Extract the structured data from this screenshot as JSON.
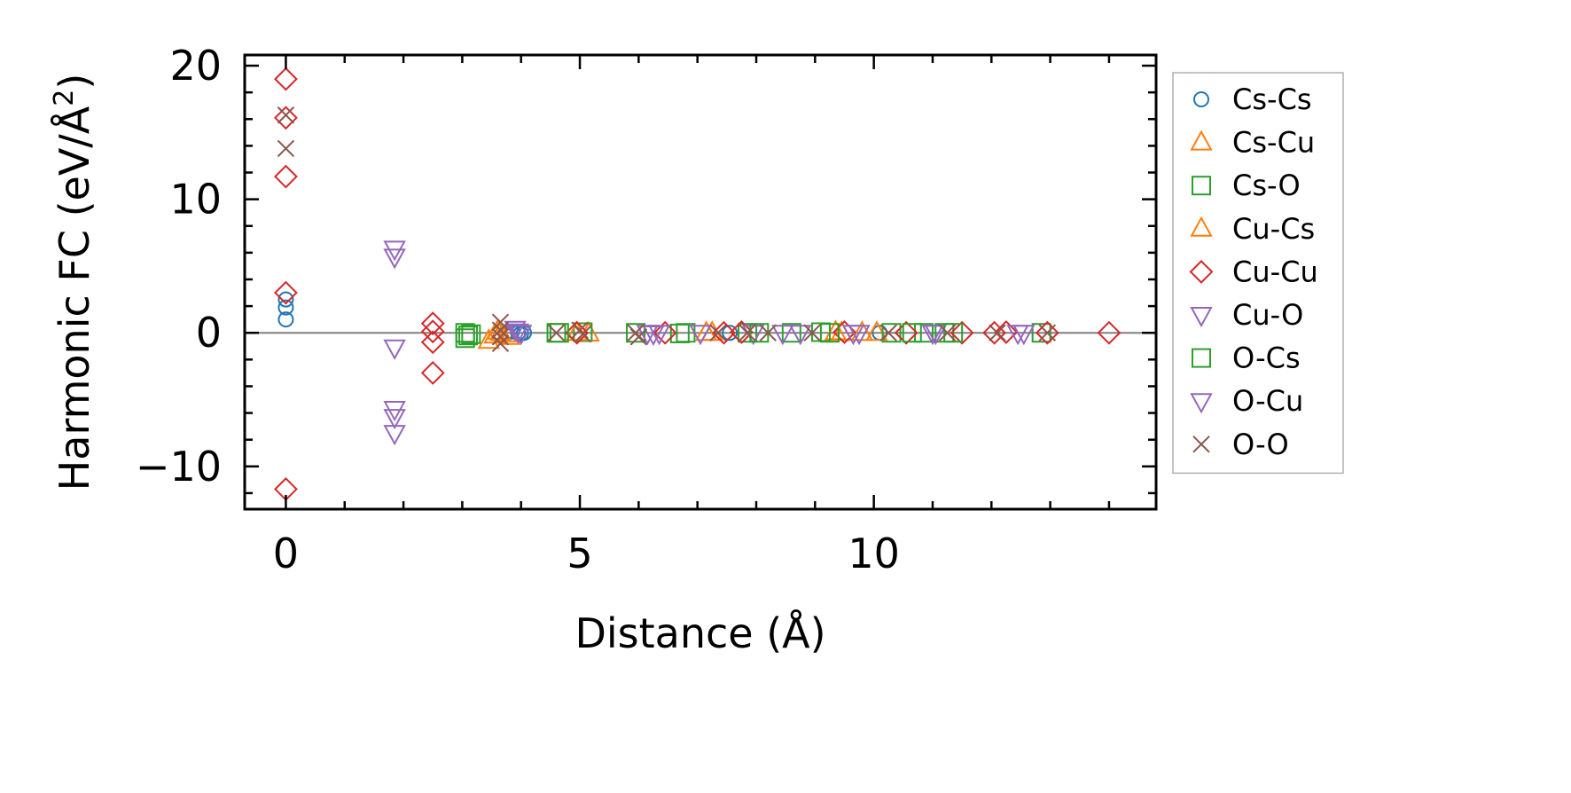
{
  "chart_data": {
    "type": "scatter",
    "xlabel": "Distance (Å)",
    "ylabel": "Harmonic FC (eV/Å",
    "ylabel_sup": "2",
    "ylabel_close": ")",
    "xlim": [
      -0.7,
      14.8
    ],
    "ylim": [
      -13.2,
      20.8
    ],
    "xticks": [
      0,
      5,
      10
    ],
    "yticks": [
      -10,
      0,
      10,
      20
    ],
    "x_tick_labels": [
      "0",
      "5",
      "10"
    ],
    "y_tick_labels": [
      "−10",
      "0",
      "10",
      "20"
    ],
    "legend_position": "outside-right",
    "zero_line": true,
    "series": [
      {
        "name": "Cs-Cs",
        "marker": "circle",
        "color": "#1f77b4",
        "points": [
          [
            0,
            1.0
          ],
          [
            0,
            1.9
          ],
          [
            0,
            2.5
          ],
          [
            3.75,
            0.05
          ],
          [
            3.85,
            0.1
          ],
          [
            3.95,
            0.0
          ],
          [
            4.0,
            -0.05
          ],
          [
            4.05,
            0.0
          ],
          [
            7.55,
            0.0
          ],
          [
            10.1,
            0.0
          ]
        ]
      },
      {
        "name": "Cs-Cu",
        "marker": "triangle-up",
        "color": "#ff7f0e",
        "points": [
          [
            3.45,
            -0.6
          ],
          [
            3.55,
            -0.2
          ],
          [
            3.65,
            0.0
          ],
          [
            3.75,
            -0.1
          ],
          [
            5.15,
            -0.05
          ],
          [
            7.15,
            0.0
          ],
          [
            9.35,
            0.05
          ],
          [
            9.8,
            0.0
          ],
          [
            10.05,
            0.0
          ]
        ]
      },
      {
        "name": "Cs-O",
        "marker": "square",
        "color": "#2ca02c",
        "points": [
          [
            3.05,
            -0.4
          ],
          [
            3.05,
            0.0
          ],
          [
            3.1,
            -0.2
          ],
          [
            4.6,
            0.0
          ],
          [
            5.05,
            0.05
          ],
          [
            5.95,
            0.0
          ],
          [
            6.7,
            -0.05
          ],
          [
            7.85,
            0.0
          ],
          [
            8.6,
            0.0
          ],
          [
            9.1,
            0.05
          ],
          [
            10.3,
            0.0
          ],
          [
            10.85,
            0.0
          ],
          [
            11.2,
            0.0
          ],
          [
            12.85,
            0.0
          ]
        ]
      },
      {
        "name": "Cu-Cs",
        "marker": "triangle-up",
        "color": "#ff7f0e",
        "points": [
          [
            3.6,
            0.1
          ],
          [
            3.8,
            -0.3
          ],
          [
            4.95,
            0.0
          ],
          [
            7.25,
            0.0
          ],
          [
            9.45,
            0.0
          ]
        ]
      },
      {
        "name": "Cu-Cu",
        "marker": "diamond",
        "color": "#d62728",
        "points": [
          [
            0,
            19.0
          ],
          [
            0,
            16.1
          ],
          [
            0,
            11.7
          ],
          [
            0,
            3.0
          ],
          [
            0,
            -11.7
          ],
          [
            2.5,
            0.7
          ],
          [
            2.5,
            0.1
          ],
          [
            2.5,
            -0.7
          ],
          [
            2.5,
            -3.0
          ],
          [
            4.95,
            0.0
          ],
          [
            6.45,
            0.0
          ],
          [
            7.45,
            0.0
          ],
          [
            7.75,
            0.05
          ],
          [
            9.5,
            0.05
          ],
          [
            10.55,
            0.0
          ],
          [
            11.5,
            0.0
          ],
          [
            12.05,
            0.0
          ],
          [
            12.25,
            0.05
          ],
          [
            12.95,
            0.0
          ],
          [
            14.0,
            0.0
          ]
        ]
      },
      {
        "name": "Cu-O",
        "marker": "triangle-down",
        "color": "#9467bd",
        "points": [
          [
            1.85,
            6.3
          ],
          [
            1.85,
            5.7
          ],
          [
            1.85,
            -1.1
          ],
          [
            1.85,
            -5.7
          ],
          [
            1.85,
            -6.3
          ],
          [
            1.85,
            -7.5
          ],
          [
            3.95,
            0.1
          ],
          [
            6.25,
            -0.05
          ],
          [
            6.35,
            0.0
          ],
          [
            7.95,
            0.0
          ],
          [
            8.75,
            0.0
          ],
          [
            9.75,
            0.0
          ],
          [
            11.05,
            0.0
          ],
          [
            12.55,
            0.0
          ]
        ]
      },
      {
        "name": "O-Cs",
        "marker": "square",
        "color": "#2ca02c",
        "points": [
          [
            3.15,
            -0.1
          ],
          [
            4.65,
            0.0
          ],
          [
            6.8,
            0.0
          ],
          [
            8.05,
            0.0
          ],
          [
            9.25,
            0.0
          ],
          [
            10.65,
            0.0
          ],
          [
            11.35,
            0.0
          ]
        ]
      },
      {
        "name": "O-Cu",
        "marker": "triangle-down",
        "color": "#9467bd",
        "points": [
          [
            3.9,
            0.3
          ],
          [
            4.0,
            0.0
          ],
          [
            6.15,
            0.0
          ],
          [
            7.05,
            0.0
          ],
          [
            8.45,
            0.0
          ],
          [
            9.65,
            0.0
          ],
          [
            11.0,
            0.0
          ],
          [
            12.45,
            0.0
          ]
        ]
      },
      {
        "name": "O-O",
        "marker": "x",
        "color": "#8c564b",
        "points": [
          [
            0,
            16.3
          ],
          [
            0,
            13.8
          ],
          [
            3.65,
            0.8
          ],
          [
            3.65,
            0.2
          ],
          [
            3.65,
            -0.3
          ],
          [
            3.65,
            -0.8
          ],
          [
            4.6,
            0.0
          ],
          [
            5.0,
            0.2
          ],
          [
            5.05,
            -0.1
          ],
          [
            5.95,
            0.0
          ],
          [
            6.0,
            -0.3
          ],
          [
            7.35,
            0.0
          ],
          [
            7.85,
            0.0
          ],
          [
            8.2,
            0.0
          ],
          [
            8.95,
            0.0
          ],
          [
            10.25,
            0.0
          ],
          [
            11.25,
            0.0
          ],
          [
            12.1,
            0.0
          ],
          [
            12.95,
            0.0
          ]
        ]
      }
    ]
  }
}
